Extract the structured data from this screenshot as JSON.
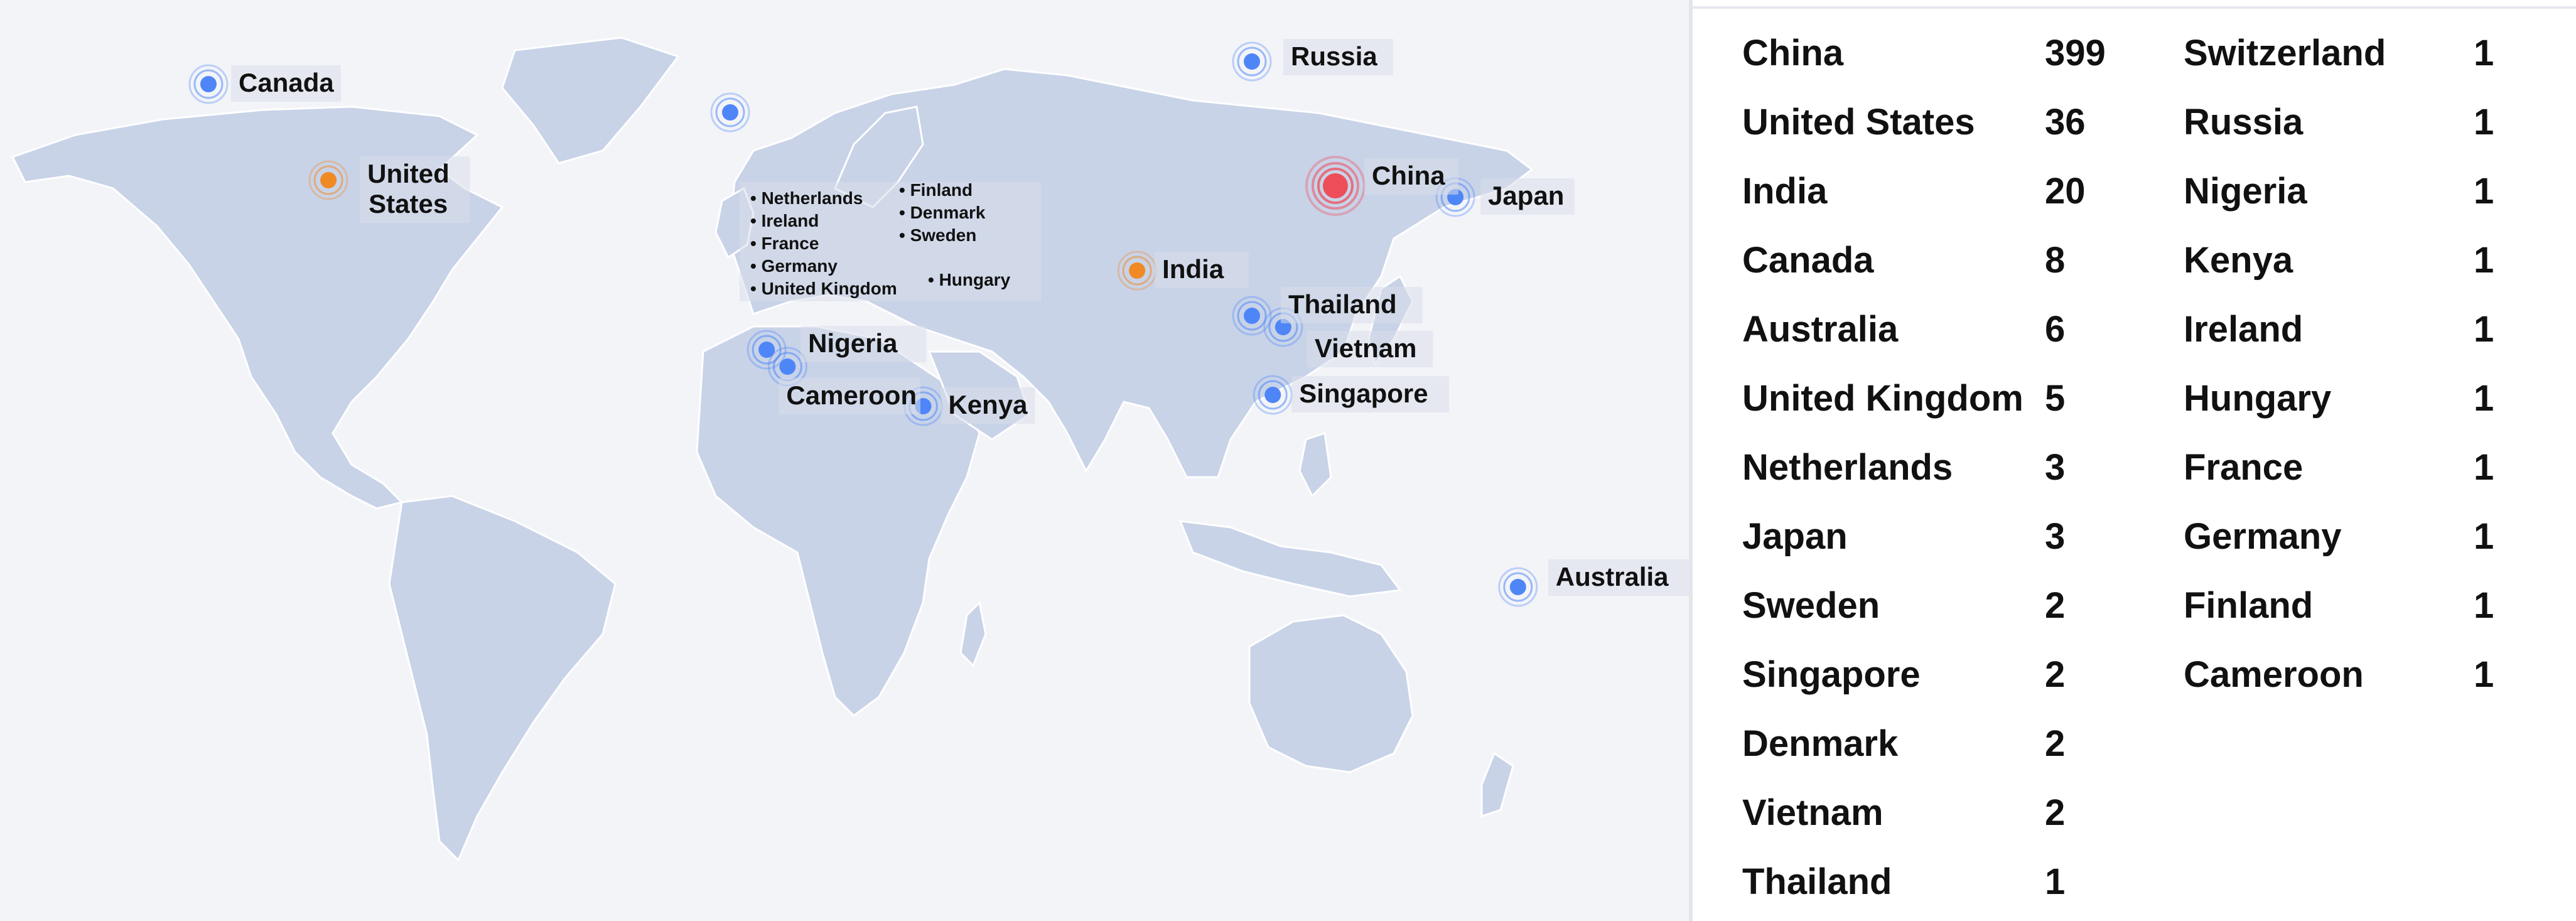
{
  "map": {
    "markers": [
      {
        "label": "Canada",
        "color": "#4f86f7",
        "size": "small",
        "lon": -100,
        "lat": 56
      },
      {
        "label": "United States",
        "lines": [
          "United",
          "States"
        ],
        "color": "#f08a24",
        "size": "small",
        "lon": -77,
        "lat": 39
      },
      {
        "label": "Russia",
        "color": "#4f86f7",
        "size": "small",
        "lon": 100,
        "lat": 60
      },
      {
        "label": "China",
        "color": "#ee4d5a",
        "size": "large",
        "lon": 116,
        "lat": 38
      },
      {
        "label": "Japan",
        "color": "#4f86f7",
        "size": "small",
        "lon": 139,
        "lat": 36
      },
      {
        "label": "India",
        "color": "#f08a24",
        "size": "small",
        "lon": 78,
        "lat": 23
      },
      {
        "label": "Thailand",
        "color": "#4f86f7",
        "size": "small",
        "lon": 100,
        "lat": 15
      },
      {
        "label": "Vietnam",
        "color": "#4f86f7",
        "size": "small",
        "lon": 106,
        "lat": 13
      },
      {
        "label": "Singapore",
        "color": "#4f86f7",
        "size": "small",
        "lon": 104,
        "lat": 1
      },
      {
        "label": "Australia",
        "color": "#4f86f7",
        "size": "small",
        "lon": 151,
        "lat": -33
      },
      {
        "label": "Nigeria",
        "color": "#4f86f7",
        "size": "small",
        "lon": 7,
        "lat": 9
      },
      {
        "label": "Cameroon",
        "color": "#4f86f7",
        "size": "small",
        "lon": 11,
        "lat": 6
      },
      {
        "label": "Kenya",
        "color": "#4f86f7",
        "size": "small",
        "lon": 37,
        "lat": -1
      },
      {
        "label": "Europe",
        "color": "#4f86f7",
        "size": "small",
        "lon": 0,
        "lat": 51
      }
    ],
    "europe_list_left": [
      "Netherlands",
      "Ireland",
      "France",
      "Germany",
      "United Kingdom"
    ],
    "europe_list_right": [
      "Finland",
      "Denmark",
      "Sweden"
    ],
    "europe_hungary": "Hungary",
    "bullet": "•"
  },
  "table": {
    "col1": [
      {
        "name": "China",
        "count": "399"
      },
      {
        "name": "United States",
        "count": "36"
      },
      {
        "name": "India",
        "count": "20"
      },
      {
        "name": "Canada",
        "count": "8"
      },
      {
        "name": "Australia",
        "count": "6"
      },
      {
        "name": "United Kingdom",
        "count": "5"
      },
      {
        "name": "Netherlands",
        "count": "3"
      },
      {
        "name": "Japan",
        "count": "3"
      },
      {
        "name": "Sweden",
        "count": "2"
      },
      {
        "name": "Singapore",
        "count": "2"
      },
      {
        "name": "Denmark",
        "count": "2"
      },
      {
        "name": "Vietnam",
        "count": "2"
      },
      {
        "name": "Thailand",
        "count": "1"
      }
    ],
    "col2": [
      {
        "name": "Switzerland",
        "count": "1"
      },
      {
        "name": "Russia",
        "count": "1"
      },
      {
        "name": "Nigeria",
        "count": "1"
      },
      {
        "name": "Kenya",
        "count": "1"
      },
      {
        "name": "Ireland",
        "count": "1"
      },
      {
        "name": "Hungary",
        "count": "1"
      },
      {
        "name": "France",
        "count": "1"
      },
      {
        "name": "Germany",
        "count": "1"
      },
      {
        "name": "Finland",
        "count": "1"
      },
      {
        "name": "Cameroon",
        "count": "1"
      }
    ]
  }
}
